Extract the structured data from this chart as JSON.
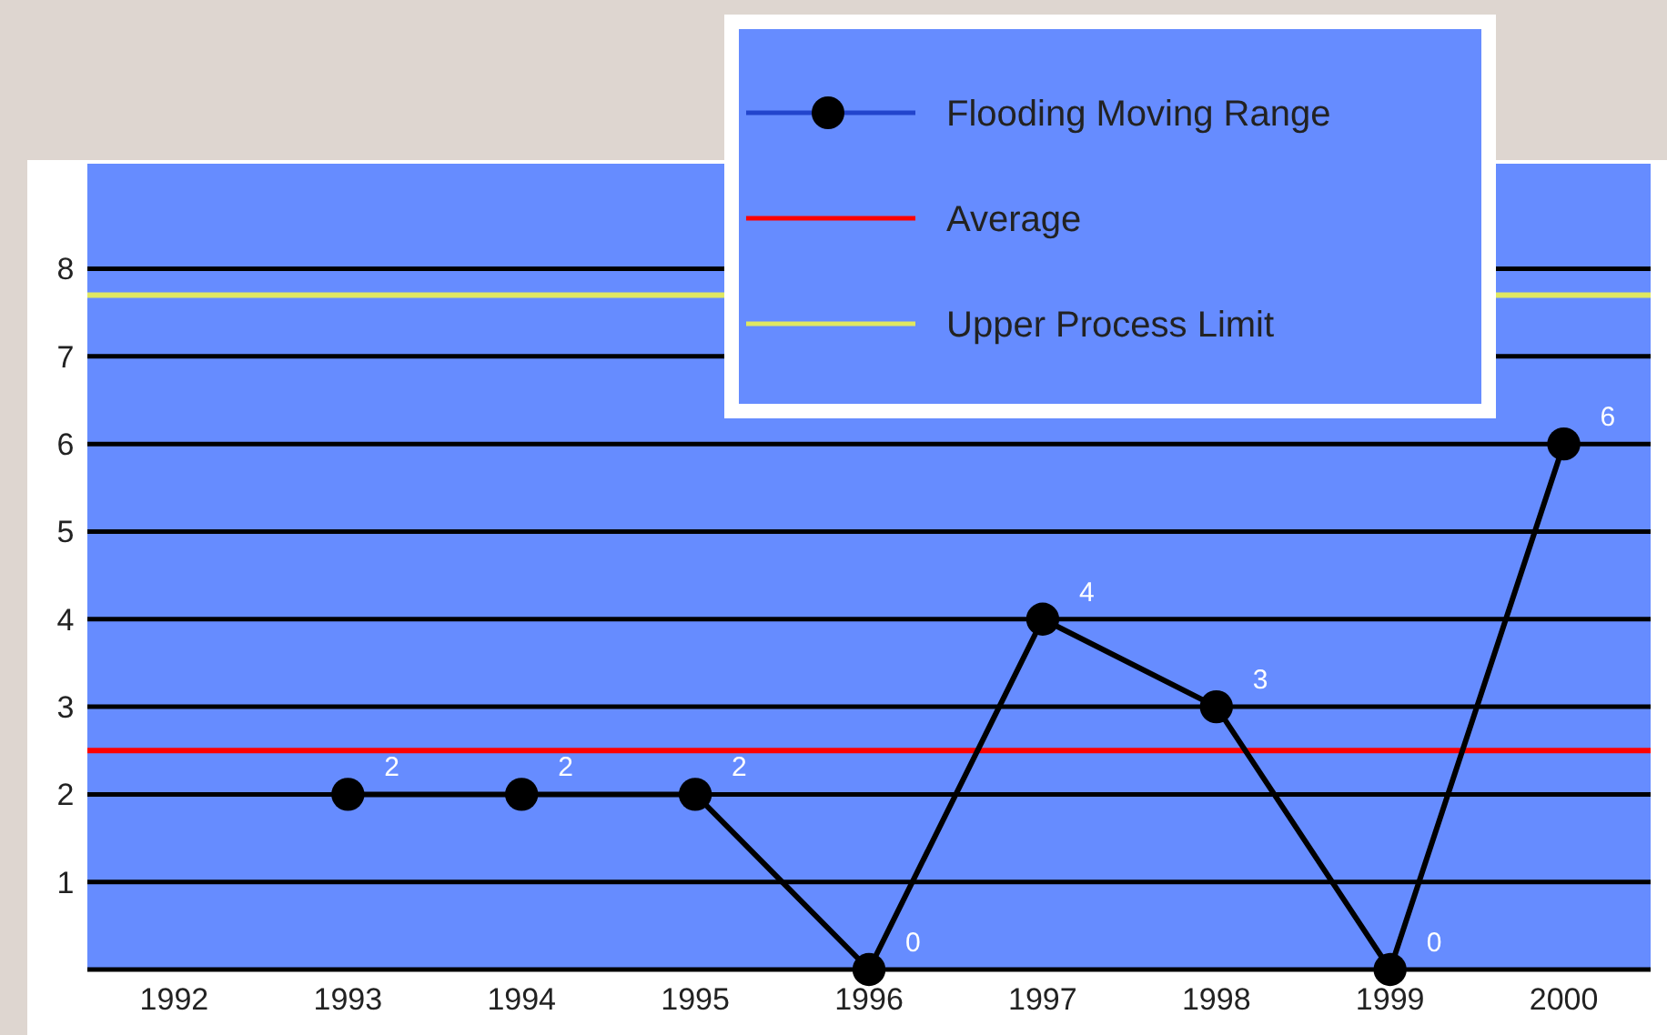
{
  "chart_data": {
    "type": "line",
    "categories": [
      "1992",
      "1993",
      "1994",
      "1995",
      "1996",
      "1997",
      "1998",
      "1999",
      "2000"
    ],
    "series": [
      {
        "name": "Flooding Moving Range",
        "color": "#000000",
        "values": [
          null,
          2,
          2,
          2,
          0,
          4,
          3,
          0,
          6
        ]
      }
    ],
    "ylim": [
      0,
      9.2
    ],
    "yticks": [
      {
        "value": 0,
        "label": null
      },
      1,
      2,
      3,
      4,
      5,
      6,
      7,
      8
    ],
    "grid": "y",
    "marker": "circle",
    "data_labels": true,
    "legend": "top right",
    "ref_lines": [
      {
        "axis": "y",
        "value": 2.5,
        "label": "Average",
        "color": "#ff0000"
      },
      {
        "axis": "y",
        "value": 7.7,
        "label": "Upper Process Limit",
        "color": "#e0e860"
      }
    ]
  }
}
